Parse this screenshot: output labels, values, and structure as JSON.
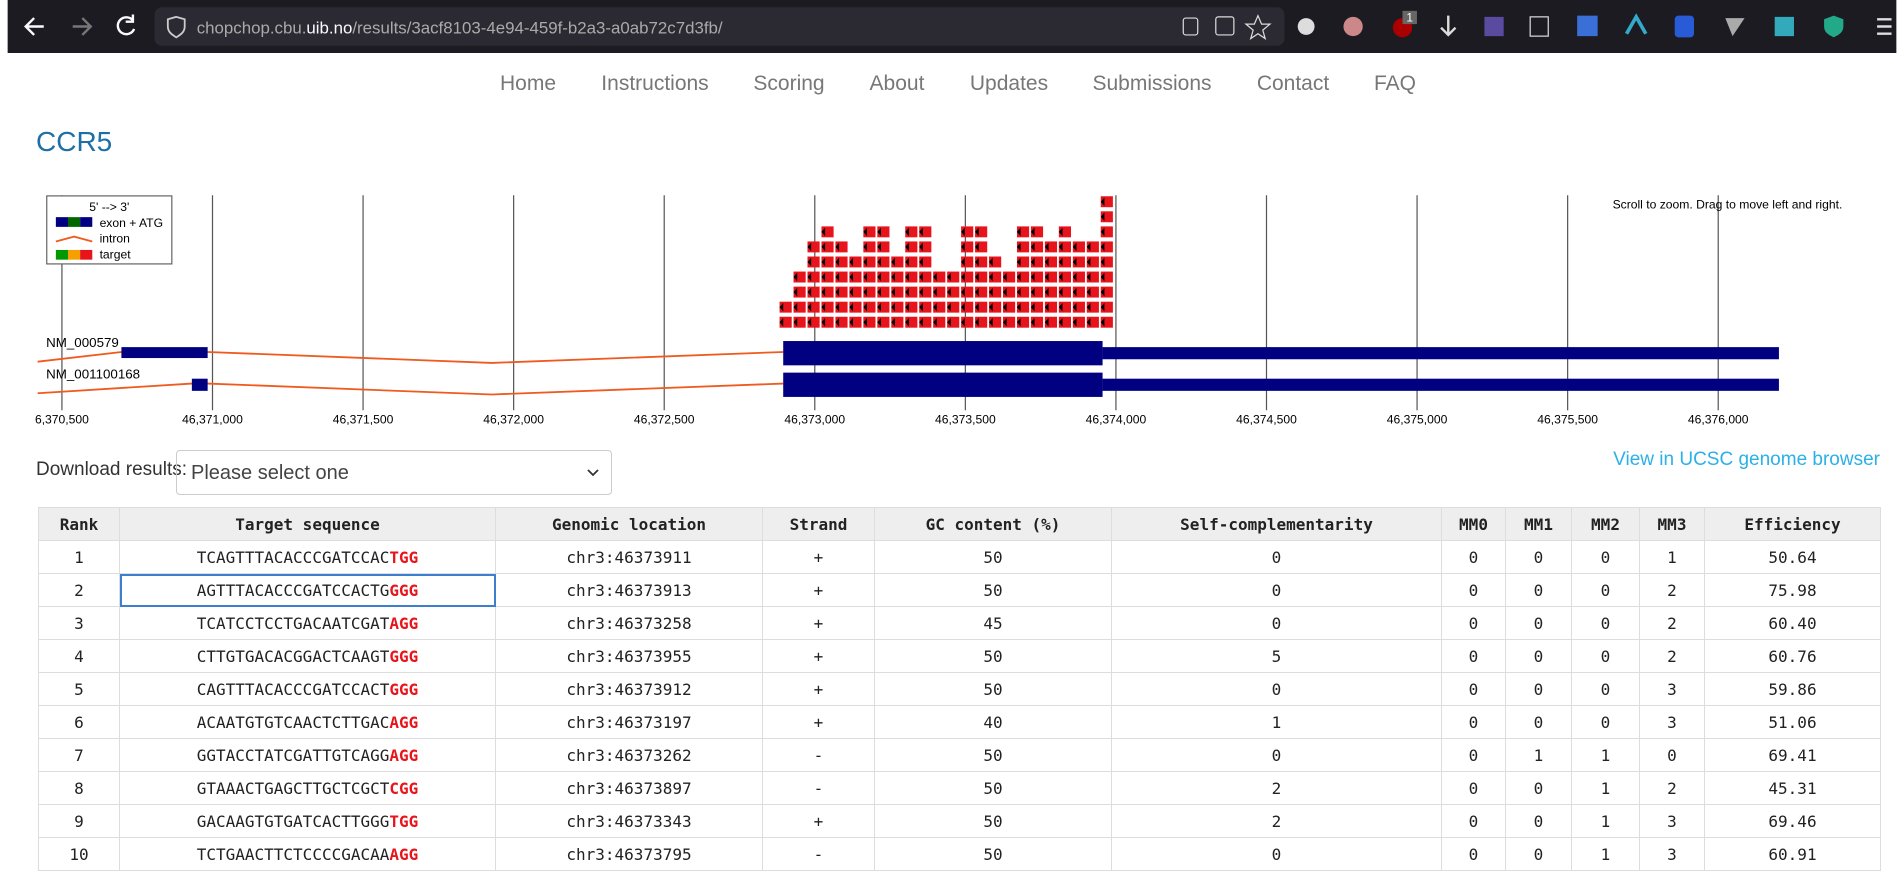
{
  "browser": {
    "url_prefix": "chopchop.cbu.",
    "url_host": "uib.no",
    "url_path": "/results/3acf8103-4e94-459f-b2a3-a0ab72c7d3fb/",
    "badge": "1"
  },
  "nav": [
    "Home",
    "Instructions",
    "Scoring",
    "About",
    "Updates",
    "Submissions",
    "Contact",
    "FAQ"
  ],
  "title": "CCR5",
  "genome": {
    "legend": [
      "5' --> 3'",
      "exon + ATG",
      "intron",
      "target"
    ],
    "hint": "Scroll to zoom. Drag to move left and right.",
    "transcripts": [
      "NM_000579",
      "NM_001100168"
    ],
    "ticks": [
      "6,370,500",
      "46,371,000",
      "46,371,500",
      "46,372,000",
      "46,372,500",
      "46,373,000",
      "46,373,500",
      "46,374,000",
      "46,374,500",
      "46,375,000",
      "46,375,500",
      "46,376,000"
    ]
  },
  "download": {
    "label": "Download results:",
    "placeholder": "Please select one"
  },
  "ucsc_link": "View in UCSC genome browser",
  "table": {
    "headers": [
      "Rank",
      "Target sequence",
      "Genomic location",
      "Strand",
      "GC content (%)",
      "Self-complementarity",
      "MM0",
      "MM1",
      "MM2",
      "MM3",
      "Efficiency"
    ],
    "rows": [
      [
        "1",
        {
          "target": "TCAGTTTACACCCGATCCAC",
          "pam": "TGG"
        },
        "chr3:46373911",
        "+",
        "50",
        "0",
        "0",
        "0",
        "0",
        "1",
        "50.64"
      ],
      [
        "2",
        {
          "target": "AGTTTACACCCGATCCACTG",
          "pam": "GGG"
        },
        "chr3:46373913",
        "+",
        "50",
        "0",
        "0",
        "0",
        "0",
        "2",
        "75.98"
      ],
      [
        "3",
        {
          "target": "TCATCCTCCTGACAATCGAT",
          "pam": "AGG"
        },
        "chr3:46373258",
        "+",
        "45",
        "0",
        "0",
        "0",
        "0",
        "2",
        "60.40"
      ],
      [
        "4",
        {
          "target": "CTTGTGACACGGACTCAAGT",
          "pam": "GGG"
        },
        "chr3:46373955",
        "+",
        "50",
        "5",
        "0",
        "0",
        "0",
        "2",
        "60.76"
      ],
      [
        "5",
        {
          "target": "CAGTTTACACCCGATCCACT",
          "pam": "GGG"
        },
        "chr3:46373912",
        "+",
        "50",
        "0",
        "0",
        "0",
        "0",
        "3",
        "59.86"
      ],
      [
        "6",
        {
          "target": "ACAATGTGTCAACTCTTGAC",
          "pam": "AGG"
        },
        "chr3:46373197",
        "+",
        "40",
        "1",
        "0",
        "0",
        "0",
        "3",
        "51.06"
      ],
      [
        "7",
        {
          "target": "GGTACCTATCGATTGTCAGG",
          "pam": "AGG"
        },
        "chr3:46373262",
        "-",
        "50",
        "0",
        "0",
        "1",
        "1",
        "0",
        "69.41"
      ],
      [
        "8",
        {
          "target": "GTAAACTGAGCTTGCTCGCT",
          "pam": "CGG"
        },
        "chr3:46373897",
        "-",
        "50",
        "2",
        "0",
        "0",
        "1",
        "2",
        "45.31"
      ],
      [
        "9",
        {
          "target": "GACAAGTGTGATCACTTGGG",
          "pam": "TGG"
        },
        "chr3:46373343",
        "+",
        "50",
        "2",
        "0",
        "0",
        "1",
        "3",
        "69.46"
      ],
      [
        "10",
        {
          "target": "TCTGAACTTCTCCCCGACAA",
          "pam": "AGG"
        },
        "chr3:46373795",
        "-",
        "50",
        "0",
        "0",
        "0",
        "1",
        "3",
        "60.91"
      ]
    ]
  }
}
